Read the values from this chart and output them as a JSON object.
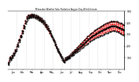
{
  "title": "Milwaukee Weather Solar Radiation Avg per Day W/m2/minute",
  "line_color": "#ff0000",
  "bg_color": "#ffffff",
  "plot_bg": "#ffffff",
  "grid_color": "#bbbbbb",
  "ylim": [
    0,
    500
  ],
  "yticks": [
    100,
    200,
    300,
    400,
    500
  ],
  "values": [
    60,
    50,
    45,
    55,
    70,
    80,
    95,
    110,
    100,
    90,
    85,
    95,
    105,
    120,
    115,
    105,
    115,
    130,
    145,
    135,
    125,
    140,
    155,
    170,
    165,
    155,
    165,
    180,
    200,
    215,
    205,
    195,
    210,
    230,
    250,
    260,
    250,
    240,
    255,
    280,
    295,
    285,
    275,
    290,
    315,
    335,
    325,
    315,
    330,
    360,
    380,
    365,
    355,
    370,
    400,
    420,
    405,
    395,
    415,
    440,
    455,
    440,
    430,
    450,
    470,
    460,
    448,
    438,
    455,
    470,
    460,
    448,
    462,
    475,
    462,
    450,
    462,
    475,
    462,
    448,
    460,
    472,
    458,
    445,
    457,
    468,
    454,
    440,
    452,
    464,
    450,
    436,
    448,
    460,
    445,
    430,
    442,
    454,
    438,
    422,
    434,
    446,
    430,
    414,
    426,
    438,
    420,
    404,
    416,
    428,
    410,
    393,
    405,
    417,
    398,
    380,
    392,
    404,
    384,
    365,
    377,
    389,
    368,
    348,
    360,
    372,
    350,
    330,
    342,
    354,
    332,
    310,
    322,
    334,
    312,
    290,
    302,
    290,
    278,
    288,
    276,
    264,
    252,
    262,
    250,
    238,
    248,
    235,
    222,
    210,
    220,
    207,
    194,
    181,
    191,
    178,
    165,
    175,
    162,
    149,
    159,
    146,
    133,
    143,
    130,
    117,
    127,
    114,
    101,
    111,
    98,
    85,
    95,
    82,
    70,
    80,
    67,
    60,
    70,
    80,
    90,
    100,
    90,
    80,
    90,
    100,
    110,
    100,
    90,
    100,
    115,
    105,
    95,
    110,
    125,
    115,
    105,
    120,
    135,
    125,
    115,
    130,
    148,
    135,
    122,
    140,
    158,
    145,
    132,
    150,
    170,
    155,
    140,
    160,
    180,
    165,
    150,
    170,
    192,
    175,
    158,
    180,
    204,
    185,
    166,
    190,
    215,
    195,
    175,
    200,
    226,
    205,
    184,
    210,
    238,
    215,
    192,
    220,
    249,
    225,
    201,
    230,
    260,
    235,
    210,
    240,
    272,
    245,
    218,
    250,
    283,
    255,
    227,
    260,
    294,
    265,
    236,
    270,
    305,
    274,
    243,
    278,
    314,
    282,
    250,
    285,
    322,
    290,
    257,
    293,
    330,
    297,
    263,
    300,
    338,
    304,
    269,
    307,
    346,
    311,
    275,
    314,
    353,
    317,
    280,
    320,
    360,
    323,
    285,
    326,
    367,
    329,
    290,
    332,
    374,
    335,
    295,
    338,
    380,
    340,
    300,
    343,
    386,
    346,
    305,
    348,
    392,
    352,
    310,
    354,
    397,
    357,
    315,
    359,
    402,
    362,
    320,
    364,
    407,
    366,
    324,
    368,
    411,
    370,
    328,
    371,
    414,
    373,
    330,
    373,
    416,
    374,
    331,
    374,
    416,
    374,
    330,
    372,
    414,
    371,
    327,
    369,
    410,
    367,
    323,
    365,
    406,
    362,
    317,
    360,
    401,
    356,
    310,
    354,
    397,
    352,
    306,
    349,
    391,
    346,
    300,
    343,
    385,
    339,
    293,
    336,
    378
  ],
  "n_grid_lines": 13,
  "xtick_labels": [
    "Jan",
    "Feb",
    "Mar",
    "Apr",
    "May",
    "Jun",
    "Jul",
    "Aug",
    "Sep",
    "Oct",
    "Nov",
    "Dec"
  ]
}
